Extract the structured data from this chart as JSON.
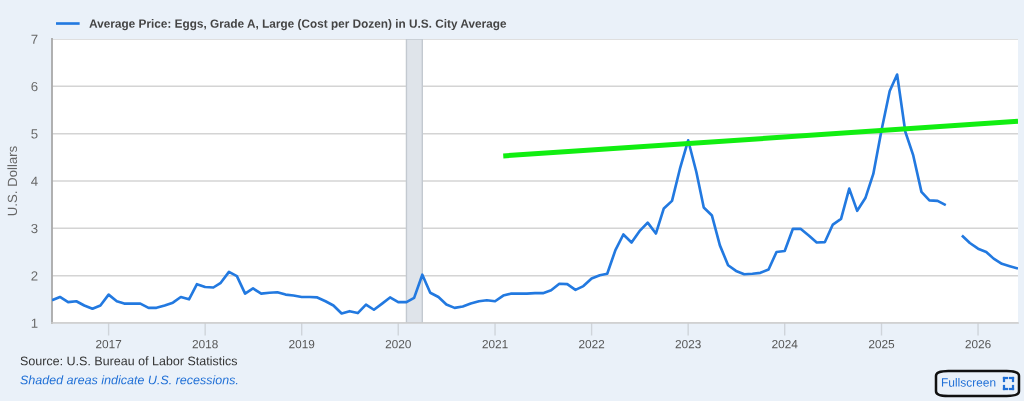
{
  "chart_data": {
    "type": "line",
    "xlabel": null,
    "ylabel": "U.S. Dollars",
    "x": [
      "2016-06",
      "2016-07",
      "2016-08",
      "2016-09",
      "2016-10",
      "2016-11",
      "2016-12",
      "2017-01",
      "2017-02",
      "2017-03",
      "2017-04",
      "2017-05",
      "2017-06",
      "2017-07",
      "2017-08",
      "2017-09",
      "2017-10",
      "2017-11",
      "2017-12",
      "2018-01",
      "2018-02",
      "2018-03",
      "2018-04",
      "2018-05",
      "2018-06",
      "2018-07",
      "2018-08",
      "2018-09",
      "2018-10",
      "2018-11",
      "2018-12",
      "2019-01",
      "2019-02",
      "2019-03",
      "2019-04",
      "2019-05",
      "2019-06",
      "2019-07",
      "2019-08",
      "2019-09",
      "2019-10",
      "2019-11",
      "2019-12",
      "2020-01",
      "2020-02",
      "2020-03",
      "2020-04",
      "2020-05",
      "2020-06",
      "2020-07",
      "2020-08",
      "2020-09",
      "2020-10",
      "2020-11",
      "2020-12",
      "2021-01",
      "2021-02",
      "2021-03",
      "2021-04",
      "2021-05",
      "2021-06",
      "2021-07",
      "2021-08",
      "2021-09",
      "2021-10",
      "2021-11",
      "2021-12",
      "2022-01",
      "2022-02",
      "2022-03",
      "2022-04",
      "2022-05",
      "2022-06",
      "2022-07",
      "2022-08",
      "2022-09",
      "2022-10",
      "2022-11",
      "2022-12",
      "2023-01",
      "2023-02",
      "2023-03",
      "2023-04",
      "2023-05",
      "2023-06",
      "2023-07",
      "2023-08",
      "2023-09",
      "2023-10",
      "2023-11",
      "2023-12",
      "2024-01",
      "2024-02",
      "2024-03",
      "2024-04",
      "2024-05",
      "2024-06",
      "2024-07",
      "2024-08",
      "2024-09",
      "2024-10",
      "2024-11",
      "2024-12",
      "2025-01",
      "2025-02",
      "2025-03",
      "2025-04",
      "2025-05",
      "2025-06",
      "2025-07",
      "2025-08",
      "2025-09",
      "2025-10",
      "2025-11",
      "2025-12",
      "2026-01",
      "2026-02",
      "2026-03",
      "2026-04",
      "2026-05",
      "2026-06"
    ],
    "series": [
      {
        "name": "Average Price: Eggs, Grade A, Large (Cost per Dozen) in U.S. City Average",
        "color": "#2279e0",
        "values": [
          1.48,
          1.55,
          1.44,
          1.46,
          1.37,
          1.3,
          1.37,
          1.6,
          1.46,
          1.41,
          1.41,
          1.41,
          1.32,
          1.32,
          1.37,
          1.43,
          1.55,
          1.5,
          1.82,
          1.76,
          1.75,
          1.85,
          2.08,
          1.99,
          1.62,
          1.73,
          1.62,
          1.64,
          1.65,
          1.6,
          1.58,
          1.55,
          1.55,
          1.54,
          1.46,
          1.37,
          1.2,
          1.25,
          1.21,
          1.39,
          1.28,
          1.41,
          1.54,
          1.44,
          1.44,
          1.53,
          2.02,
          1.64,
          1.55,
          1.39,
          1.32,
          1.35,
          1.41,
          1.46,
          1.48,
          1.46,
          1.58,
          1.62,
          1.62,
          1.62,
          1.63,
          1.63,
          1.69,
          1.83,
          1.82,
          1.7,
          1.78,
          1.94,
          2.01,
          2.04,
          2.54,
          2.87,
          2.7,
          2.94,
          3.12,
          2.89,
          3.42,
          3.58,
          4.26,
          4.86,
          4.19,
          3.44,
          3.27,
          2.64,
          2.22,
          2.1,
          2.03,
          2.04,
          2.06,
          2.13,
          2.5,
          2.52,
          2.99,
          2.99,
          2.85,
          2.7,
          2.71,
          3.08,
          3.2,
          3.84,
          3.37,
          3.64,
          4.15,
          5.07,
          5.9,
          6.25,
          5.04,
          4.54,
          3.77,
          3.59,
          3.58,
          3.49,
          null,
          2.85,
          2.69,
          2.57,
          2.5,
          2.36,
          2.25,
          2.2,
          2.15
        ]
      },
      {
        "type": "line",
        "color": "#11ee11",
        "x": [
          "2021-02",
          "2026-06"
        ],
        "values": [
          4.53,
          5.26
        ]
      }
    ],
    "xlim": [
      "2016-06",
      "2026-06"
    ],
    "xticks": [
      "2017",
      "2018",
      "2019",
      "2020",
      "2021",
      "2022",
      "2023",
      "2024",
      "2025",
      "2026"
    ],
    "ylim": [
      1,
      7
    ],
    "yticks": [
      1,
      2,
      3,
      4,
      5,
      6,
      7
    ],
    "grid": "y",
    "legend": "top left",
    "line_style": "solid",
    "bands": [
      {
        "axis": "x",
        "from": "2020-02",
        "to": "2020-04",
        "color": "#dfe4ea"
      }
    ],
    "annotations": [
      "Source: U.S. Bureau of Labor Statistics",
      "Shaded areas indicate U.S. recessions.",
      "Fullscreen"
    ]
  }
}
